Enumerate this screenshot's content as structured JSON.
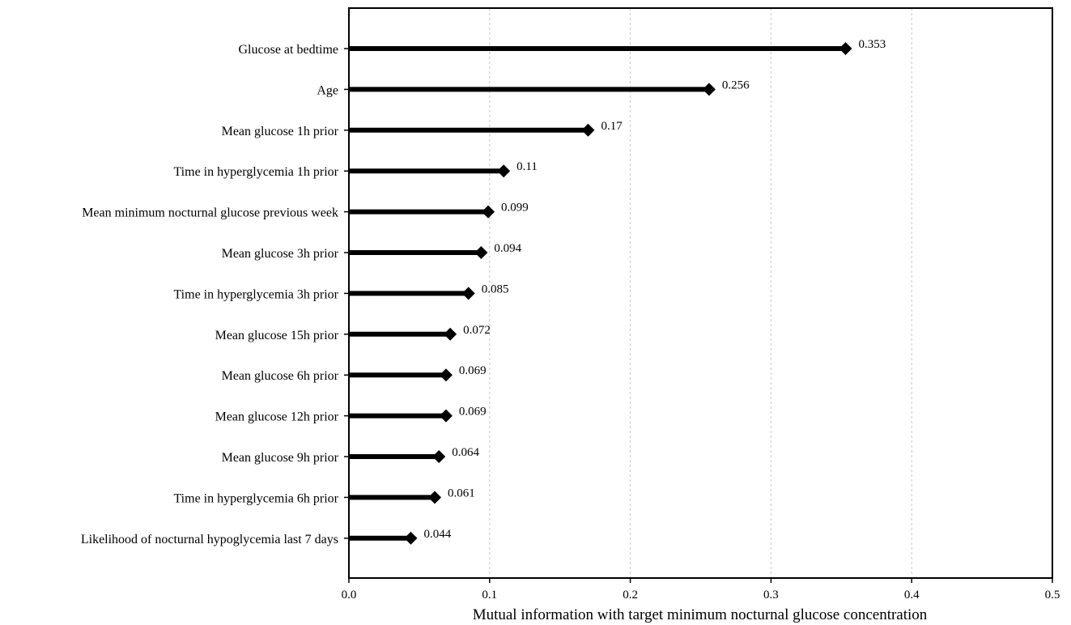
{
  "chart_data": {
    "type": "bar",
    "orientation": "horizontal",
    "style": "lollipop",
    "title": "",
    "xlabel": "Mutual information with target minimum nocturnal glucose concentration",
    "ylabel": "",
    "xlim": [
      0,
      0.5
    ],
    "xticks": [
      0.0,
      0.1,
      0.2,
      0.3,
      0.4,
      0.5
    ],
    "xtick_labels": [
      "0.0",
      "0.1",
      "0.2",
      "0.3",
      "0.4",
      "0.5"
    ],
    "grid": "vertical dashed",
    "legend": "none",
    "bar_color": "#000000",
    "categories": [
      "Glucose at bedtime",
      "Age",
      "Mean glucose 1h prior",
      "Time in hyperglycemia 1h prior",
      "Mean minimum nocturnal glucose previous week",
      "Mean glucose 3h prior",
      "Time in hyperglycemia 3h prior",
      "Mean glucose 15h prior",
      "Mean glucose 6h prior",
      "Mean glucose 12h prior",
      "Mean glucose 9h prior",
      "Time in hyperglycemia 6h prior",
      "Likelihood of nocturnal hypoglycemia last 7 days"
    ],
    "values": [
      0.353,
      0.256,
      0.17,
      0.11,
      0.099,
      0.094,
      0.085,
      0.072,
      0.069,
      0.069,
      0.064,
      0.061,
      0.044
    ],
    "value_labels": [
      "0.353",
      "0.256",
      "0.17",
      "0.11",
      "0.099",
      "0.094",
      "0.085",
      "0.072",
      "0.069",
      "0.069",
      "0.064",
      "0.061",
      "0.044"
    ]
  }
}
